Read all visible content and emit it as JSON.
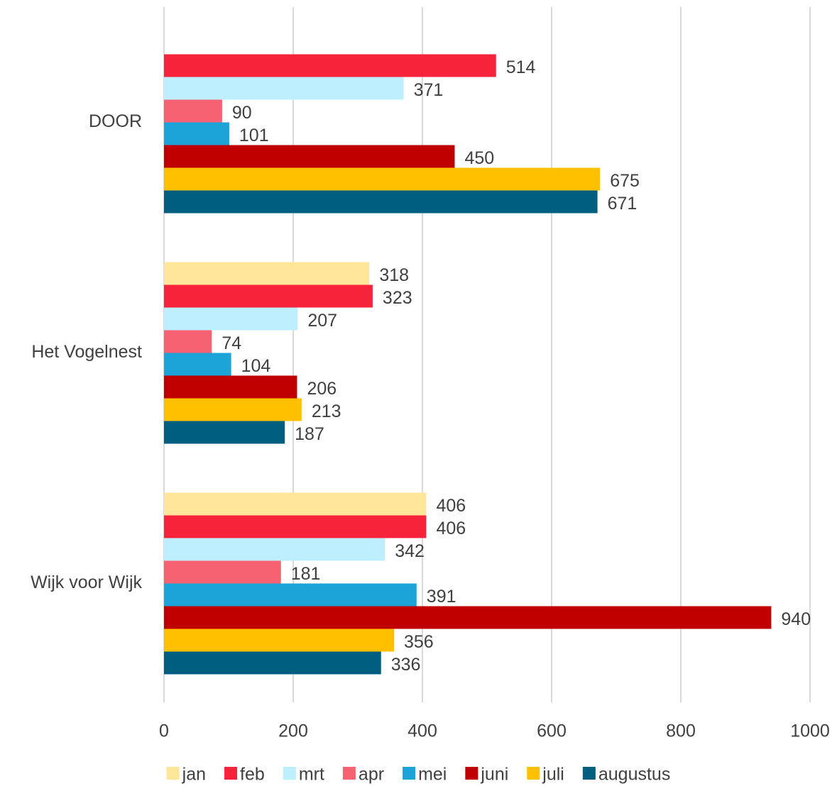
{
  "chart_data": {
    "type": "hbar",
    "categories": [
      "DOOR",
      "Het Vogelnest",
      "Wijk voor Wijk"
    ],
    "series": [
      {
        "name": "jan",
        "color": "#FFE699",
        "values": [
          null,
          318,
          406
        ]
      },
      {
        "name": "feb",
        "color": "#F7233B",
        "values": [
          514,
          323,
          406
        ]
      },
      {
        "name": "mrt",
        "color": "#BDEFFF",
        "values": [
          371,
          207,
          342
        ]
      },
      {
        "name": "apr",
        "color": "#F76272",
        "values": [
          90,
          74,
          181
        ]
      },
      {
        "name": "mei",
        "color": "#1CA3D7",
        "values": [
          101,
          104,
          391
        ]
      },
      {
        "name": "juni",
        "color": "#C00000",
        "values": [
          450,
          206,
          940
        ]
      },
      {
        "name": "juli",
        "color": "#FFC000",
        "values": [
          675,
          213,
          356
        ]
      },
      {
        "name": "augustus",
        "color": "#005F7F",
        "values": [
          671,
          187,
          336
        ]
      }
    ],
    "xlim": [
      0,
      1000
    ],
    "xticks": [
      0,
      200,
      400,
      600,
      800,
      1000
    ],
    "grid": true,
    "legend": "bottom"
  }
}
